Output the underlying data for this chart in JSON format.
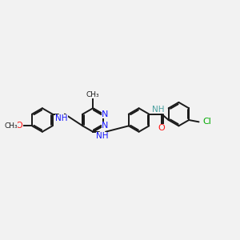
{
  "bg": "#f2f2f2",
  "bond_color": "#1a1a1a",
  "N_color": "#1414ff",
  "O_color": "#ff1414",
  "Cl_color": "#00aa00",
  "C_color": "#1a1a1a",
  "NH_color": "#4aa0a0",
  "lw": 1.4,
  "ring_r": 0.5,
  "figsize": [
    3.0,
    3.0
  ],
  "dpi": 100,
  "xlim": [
    -0.5,
    9.5
  ],
  "ylim": [
    1.5,
    6.5
  ]
}
